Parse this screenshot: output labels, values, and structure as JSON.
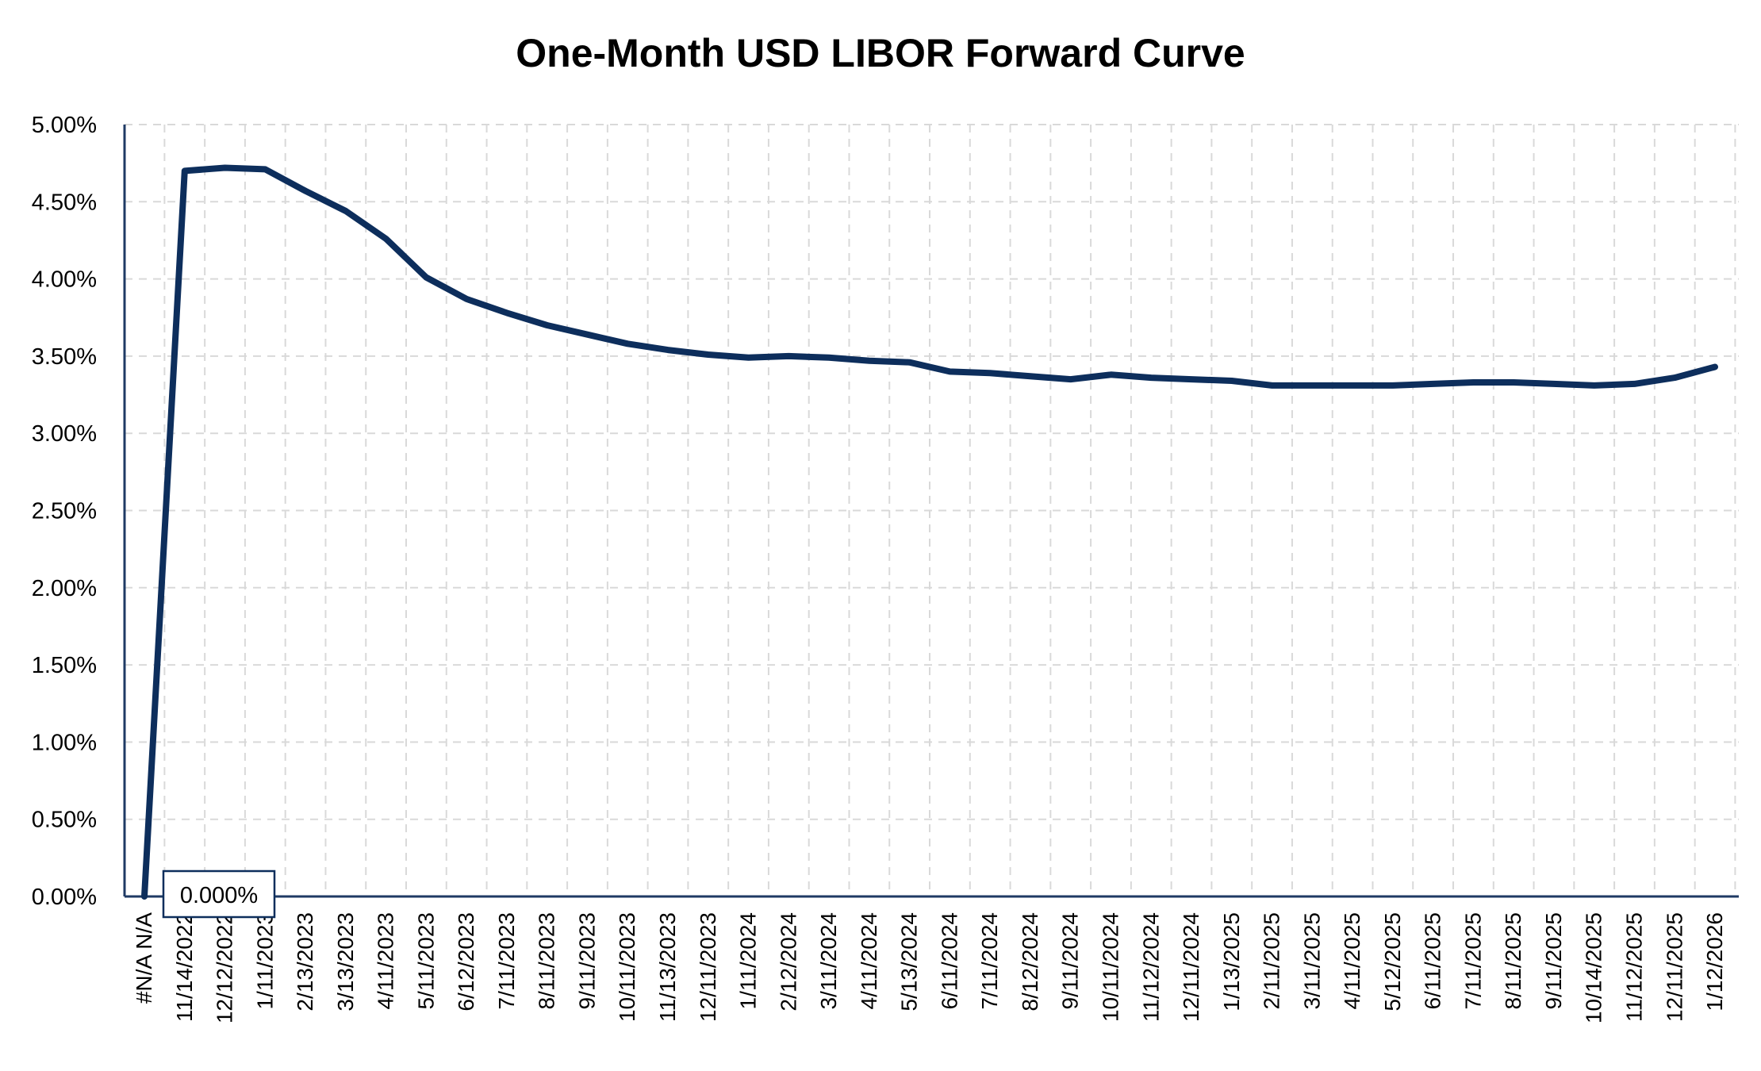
{
  "chart_data": {
    "type": "line",
    "title": "One-Month USD LIBOR Forward Curve",
    "xlabel": "",
    "ylabel": "",
    "ylim": [
      0,
      5
    ],
    "y_ticks": [
      "0.00%",
      "0.50%",
      "1.00%",
      "1.50%",
      "2.00%",
      "2.50%",
      "3.00%",
      "3.50%",
      "4.00%",
      "4.50%",
      "5.00%"
    ],
    "y_tick_values": [
      0,
      0.5,
      1,
      1.5,
      2,
      2.5,
      3,
      3.5,
      4,
      4.5,
      5
    ],
    "grid": true,
    "legend": "none",
    "line_color": "#0d2e5c",
    "categories": [
      "#N/A N/A",
      "11/14/2022",
      "12/12/2022",
      "1/11/2023",
      "2/13/2023",
      "3/13/2023",
      "4/11/2023",
      "5/11/2023",
      "6/12/2023",
      "7/11/2023",
      "8/11/2023",
      "9/11/2023",
      "10/11/2023",
      "11/13/2023",
      "12/11/2023",
      "1/11/2024",
      "2/12/2024",
      "3/11/2024",
      "4/11/2024",
      "5/13/2024",
      "6/11/2024",
      "7/11/2024",
      "8/12/2024",
      "9/11/2024",
      "10/11/2024",
      "11/12/2024",
      "12/11/2024",
      "1/13/2025",
      "2/11/2025",
      "3/11/2025",
      "4/11/2025",
      "5/12/2025",
      "6/11/2025",
      "7/11/2025",
      "8/11/2025",
      "9/11/2025",
      "10/14/2025",
      "11/12/2025",
      "12/11/2025",
      "1/12/2026"
    ],
    "series": [
      {
        "values": [
          0.0,
          4.7,
          4.72,
          4.71,
          4.57,
          4.44,
          4.26,
          4.01,
          3.87,
          3.78,
          3.7,
          3.64,
          3.58,
          3.54,
          3.51,
          3.49,
          3.5,
          3.49,
          3.47,
          3.46,
          3.4,
          3.39,
          3.37,
          3.35,
          3.38,
          3.36,
          3.35,
          3.34,
          3.31,
          3.31,
          3.31,
          3.31,
          3.32,
          3.33,
          3.33,
          3.32,
          3.31,
          3.32,
          3.36,
          3.43
        ]
      }
    ],
    "data_labels": [
      {
        "category_index": 0,
        "text": "0.000%"
      }
    ]
  }
}
